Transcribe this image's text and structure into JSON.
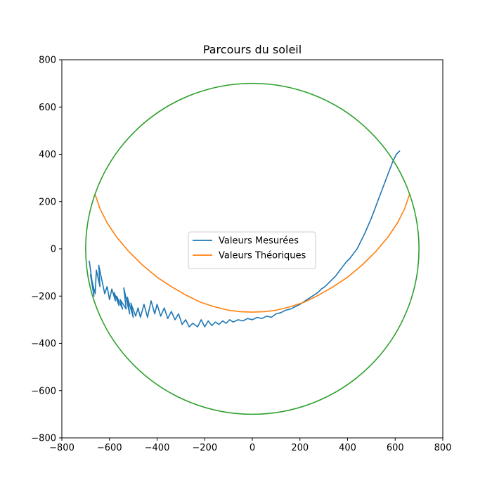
{
  "chart_data": {
    "type": "line",
    "title": "Parcours du soleil",
    "xlabel": "",
    "ylabel": "",
    "xlim": [
      -800,
      800
    ],
    "ylim": [
      -800,
      800
    ],
    "xticks": [
      -800,
      -600,
      -400,
      -200,
      0,
      200,
      400,
      600,
      800
    ],
    "yticks": [
      -800,
      -600,
      -400,
      -200,
      0,
      200,
      400,
      600,
      800
    ],
    "xtick_labels": [
      "−800",
      "−600",
      "−400",
      "−200",
      "0",
      "200",
      "400",
      "600",
      "800"
    ],
    "ytick_labels": [
      "−800",
      "−600",
      "−400",
      "−200",
      "0",
      "200",
      "400",
      "600",
      "800"
    ],
    "grid": false,
    "legend_position": "center",
    "series": [
      {
        "name": "Valeurs Mesurées",
        "color": "#1f77b4",
        "points": [
          [
            -685,
            -50
          ],
          [
            -665,
            -200
          ],
          [
            -680,
            -110
          ],
          [
            -660,
            -190
          ],
          [
            -655,
            -90
          ],
          [
            -640,
            -160
          ],
          [
            -645,
            -70
          ],
          [
            -620,
            -190
          ],
          [
            -610,
            -160
          ],
          [
            -600,
            -215
          ],
          [
            -590,
            -170
          ],
          [
            -575,
            -220
          ],
          [
            -580,
            -185
          ],
          [
            -560,
            -240
          ],
          [
            -570,
            -200
          ],
          [
            -545,
            -255
          ],
          [
            -555,
            -215
          ],
          [
            -530,
            -255
          ],
          [
            -540,
            -165
          ],
          [
            -515,
            -275
          ],
          [
            -525,
            -205
          ],
          [
            -500,
            -290
          ],
          [
            -510,
            -230
          ],
          [
            -490,
            -285
          ],
          [
            -480,
            -250
          ],
          [
            -470,
            -290
          ],
          [
            -455,
            -235
          ],
          [
            -440,
            -290
          ],
          [
            -425,
            -220
          ],
          [
            -410,
            -275
          ],
          [
            -400,
            -235
          ],
          [
            -385,
            -285
          ],
          [
            -370,
            -250
          ],
          [
            -355,
            -295
          ],
          [
            -340,
            -265
          ],
          [
            -325,
            -300
          ],
          [
            -310,
            -275
          ],
          [
            -295,
            -320
          ],
          [
            -280,
            -300
          ],
          [
            -265,
            -330
          ],
          [
            -250,
            -315
          ],
          [
            -230,
            -330
          ],
          [
            -215,
            -300
          ],
          [
            -200,
            -330
          ],
          [
            -185,
            -305
          ],
          [
            -170,
            -325
          ],
          [
            -155,
            -310
          ],
          [
            -140,
            -320
          ],
          [
            -125,
            -305
          ],
          [
            -110,
            -315
          ],
          [
            -95,
            -300
          ],
          [
            -80,
            -310
          ],
          [
            -60,
            -300
          ],
          [
            -40,
            -305
          ],
          [
            -20,
            -295
          ],
          [
            0,
            -300
          ],
          [
            20,
            -290
          ],
          [
            40,
            -295
          ],
          [
            60,
            -285
          ],
          [
            80,
            -290
          ],
          [
            100,
            -275
          ],
          [
            120,
            -270
          ],
          [
            140,
            -260
          ],
          [
            160,
            -255
          ],
          [
            180,
            -245
          ],
          [
            200,
            -235
          ],
          [
            215,
            -225
          ],
          [
            230,
            -215
          ],
          [
            245,
            -205
          ],
          [
            260,
            -195
          ],
          [
            275,
            -185
          ],
          [
            290,
            -170
          ],
          [
            305,
            -160
          ],
          [
            320,
            -145
          ],
          [
            335,
            -130
          ],
          [
            350,
            -115
          ],
          [
            365,
            -95
          ],
          [
            380,
            -75
          ],
          [
            395,
            -55
          ],
          [
            410,
            -40
          ],
          [
            425,
            -20
          ],
          [
            440,
            0
          ],
          [
            455,
            30
          ],
          [
            470,
            60
          ],
          [
            485,
            95
          ],
          [
            500,
            130
          ],
          [
            515,
            170
          ],
          [
            530,
            210
          ],
          [
            545,
            250
          ],
          [
            560,
            290
          ],
          [
            575,
            330
          ],
          [
            590,
            370
          ],
          [
            605,
            400
          ],
          [
            620,
            415
          ]
        ]
      },
      {
        "name": "Valeurs Théoriques",
        "color": "#ff7f0e",
        "points": [
          [
            -660,
            230
          ],
          [
            -640,
            170
          ],
          [
            -610,
            110
          ],
          [
            -570,
            50
          ],
          [
            -520,
            -10
          ],
          [
            -460,
            -70
          ],
          [
            -400,
            -120
          ],
          [
            -340,
            -160
          ],
          [
            -280,
            -195
          ],
          [
            -220,
            -225
          ],
          [
            -160,
            -245
          ],
          [
            -100,
            -260
          ],
          [
            -50,
            -266
          ],
          [
            0,
            -268
          ],
          [
            50,
            -266
          ],
          [
            100,
            -260
          ],
          [
            160,
            -245
          ],
          [
            220,
            -225
          ],
          [
            280,
            -195
          ],
          [
            340,
            -160
          ],
          [
            400,
            -120
          ],
          [
            460,
            -70
          ],
          [
            520,
            -10
          ],
          [
            570,
            50
          ],
          [
            610,
            110
          ],
          [
            640,
            170
          ],
          [
            660,
            230
          ]
        ]
      },
      {
        "name": "",
        "color": "#2ca02c",
        "shape": "circle",
        "center": [
          0,
          0
        ],
        "radius": 700
      }
    ]
  }
}
